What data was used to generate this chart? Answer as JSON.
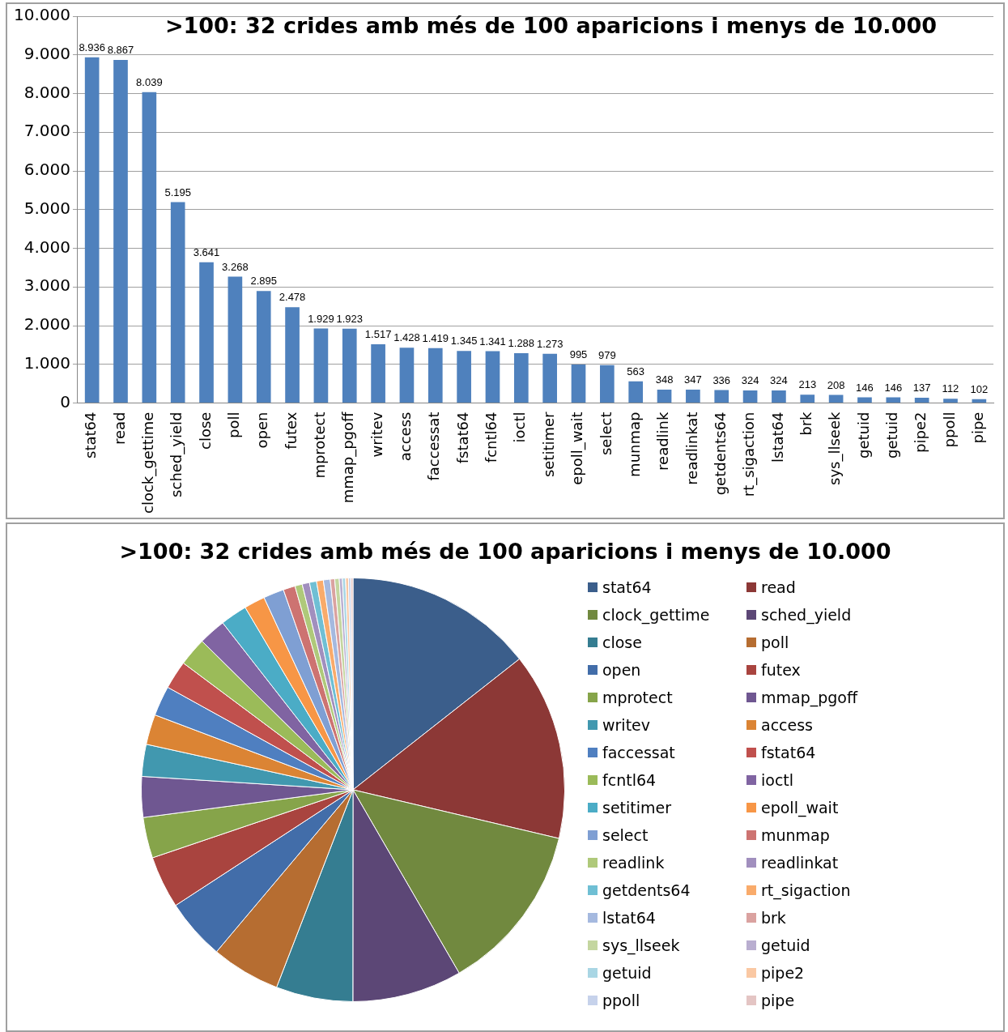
{
  "chart_data": [
    {
      "type": "bar",
      "title": ">100: 32 crides amb més de 100 aparicions i menys de 10.000",
      "categories": [
        "stat64",
        "read",
        "clock_gettime",
        "sched_yield",
        "close",
        "poll",
        "open",
        "futex",
        "mprotect",
        "mmap_pgoff",
        "writev",
        "access",
        "faccessat",
        "fstat64",
        "fcntl64",
        "ioctl",
        "setitimer",
        "epoll_wait",
        "select",
        "munmap",
        "readlink",
        "readlinkat",
        "getdents64",
        "rt_sigaction",
        "lstat64",
        "brk",
        "sys_llseek",
        "getuid",
        "getuid",
        "pipe2",
        "ppoll",
        "pipe"
      ],
      "values": [
        8936,
        8867,
        8039,
        5195,
        3641,
        3268,
        2895,
        2478,
        1929,
        1923,
        1517,
        1428,
        1419,
        1345,
        1341,
        1288,
        1273,
        995,
        979,
        563,
        348,
        347,
        336,
        324,
        324,
        213,
        208,
        146,
        146,
        137,
        112,
        102
      ],
      "value_labels": [
        "8.936",
        "8.867",
        "8.039",
        "5.195",
        "3.641",
        "3.268",
        "2.895",
        "2.478",
        "1.929",
        "1.923",
        "1.517",
        "1.428",
        "1.419",
        "1.345",
        "1.341",
        "1.288",
        "1.273",
        "995",
        "979",
        "563",
        "348",
        "347",
        "336",
        "324",
        "324",
        "213",
        "208",
        "146",
        "146",
        "137",
        "112",
        "102"
      ],
      "color": "#4f81bd",
      "ylim": [
        0,
        10000
      ],
      "yticks": [
        {
          "value": 0,
          "label": "0"
        },
        {
          "value": 1000,
          "label": "1.000"
        },
        {
          "value": 2000,
          "label": "2.000"
        },
        {
          "value": 3000,
          "label": "3.000"
        },
        {
          "value": 4000,
          "label": "4.000"
        },
        {
          "value": 5000,
          "label": "5.000"
        },
        {
          "value": 6000,
          "label": "6.000"
        },
        {
          "value": 7000,
          "label": "7.000"
        },
        {
          "value": 8000,
          "label": "8.000"
        },
        {
          "value": 9000,
          "label": "9.000"
        },
        {
          "value": 10000,
          "label": "10.000"
        }
      ],
      "grid": "y"
    },
    {
      "type": "pie",
      "title": ">100: 32 crides amb més de 100 aparicions i menys de 10.000",
      "categories": [
        "stat64",
        "read",
        "clock_gettime",
        "sched_yield",
        "close",
        "poll",
        "open",
        "futex",
        "mprotect",
        "mmap_pgoff",
        "writev",
        "access",
        "faccessat",
        "fstat64",
        "fcntl64",
        "ioctl",
        "setitimer",
        "epoll_wait",
        "select",
        "munmap",
        "readlink",
        "readlinkat",
        "getdents64",
        "rt_sigaction",
        "lstat64",
        "brk",
        "sys_llseek",
        "getuid",
        "getuid",
        "pipe2",
        "ppoll",
        "pipe"
      ],
      "values": [
        14.4,
        14.29,
        12.95,
        8.37,
        5.87,
        5.27,
        4.66,
        3.99,
        3.11,
        3.1,
        2.44,
        2.3,
        2.29,
        2.17,
        2.16,
        2.08,
        2.05,
        1.6,
        1.57,
        0.91,
        0.56,
        0.56,
        0.54,
        0.52,
        0.52,
        0.34,
        0.34,
        0.24,
        0.24,
        0.22,
        0.18,
        0.16
      ],
      "colors": [
        "#3b5e8b",
        "#8c3836",
        "#71893f",
        "#5c4776",
        "#357d91",
        "#b66d31",
        "#426da9",
        "#a9443f",
        "#86a44a",
        "#6f5791",
        "#4198af",
        "#db8434",
        "#4f7fc0",
        "#c0504d",
        "#9bbb59",
        "#8064a2",
        "#4bacc6",
        "#f79646",
        "#7f9fd3",
        "#cd7371",
        "#afc97a",
        "#a18fbe",
        "#6fbfd4",
        "#f9ab6b",
        "#a5b9df",
        "#daa2a0",
        "#c4d6a0",
        "#b9aed0",
        "#a9d6e4",
        "#fac8a3",
        "#c6d2eb",
        "#e4c5c4"
      ],
      "legend": "right"
    }
  ]
}
